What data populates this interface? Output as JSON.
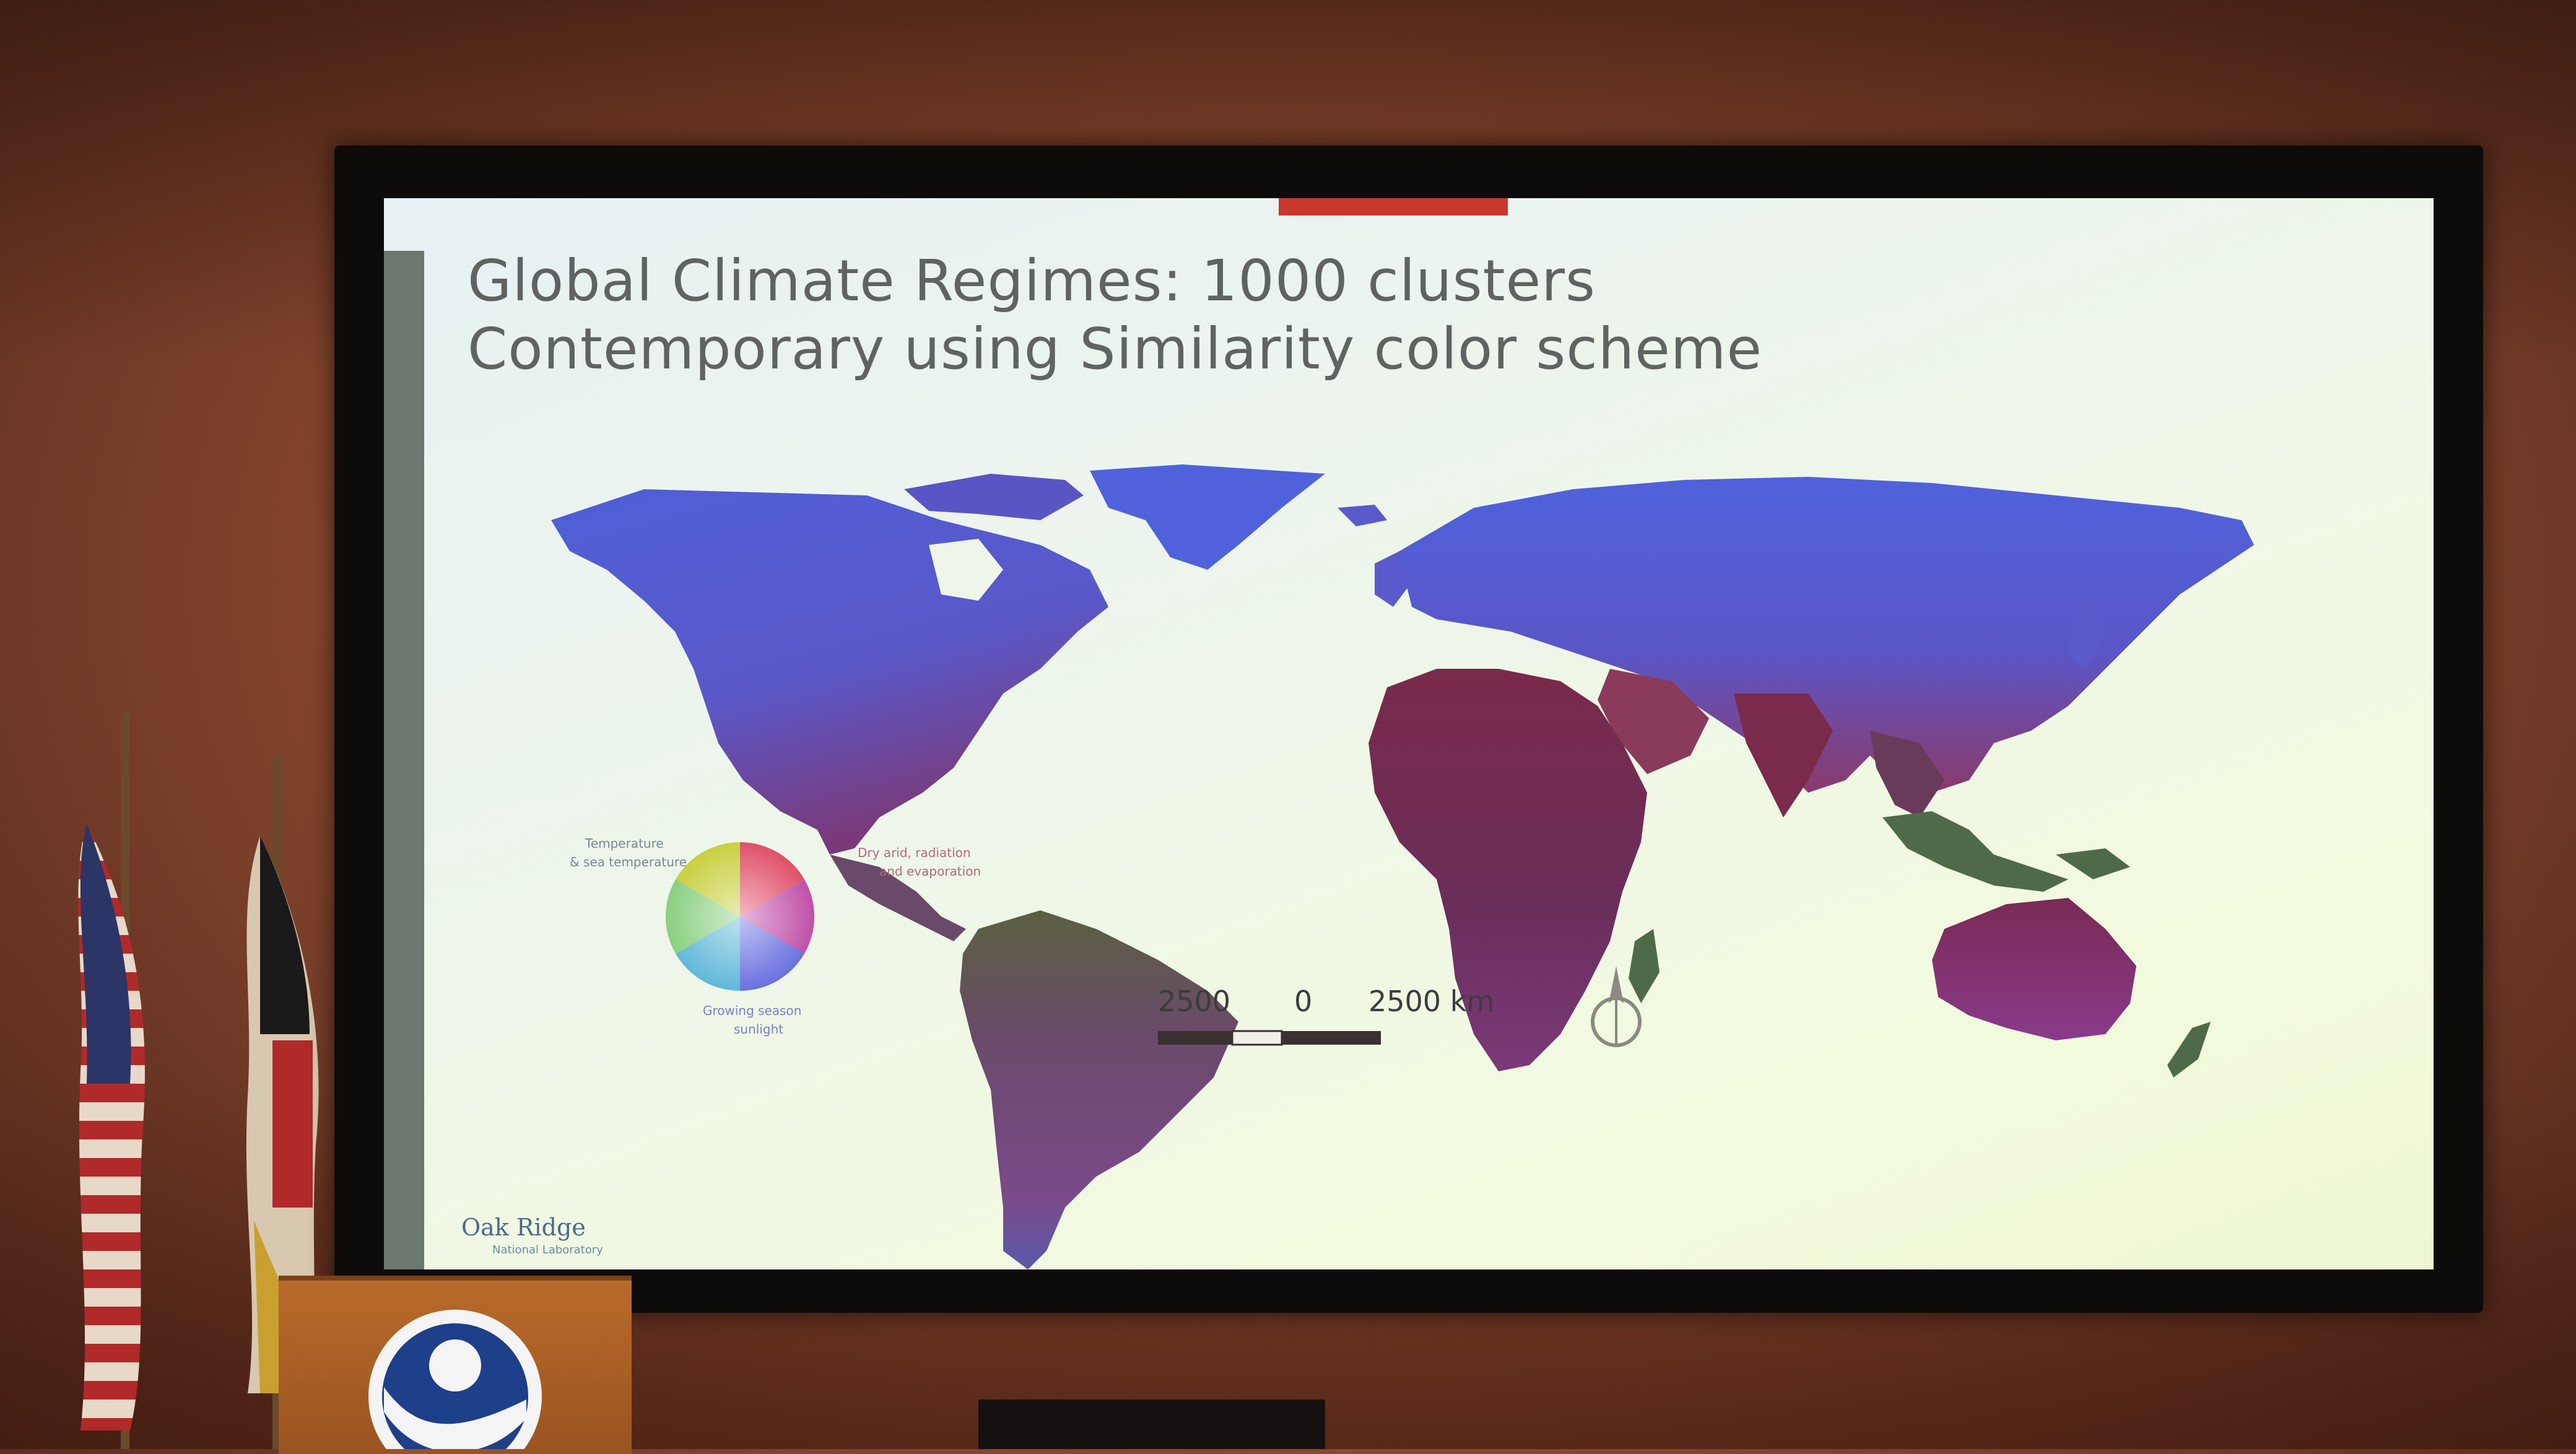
{
  "slide": {
    "title_line_1": "Global Climate Regimes: 1000 clusters",
    "title_line_2": "Contemporary using Similarity color scheme",
    "scale_bar": {
      "left_label": "2500",
      "middle_label": "0",
      "right_label": "2500 km"
    },
    "legend": {
      "label_top_left": "Temperature",
      "label_top_left_2": "& sea temperature",
      "label_top_right": "Dry arid, radiation",
      "label_top_right_2": "and evaporation",
      "label_bottom": "Growing season",
      "label_bottom_2": "sunlight"
    },
    "logo_text": "Oak Ridge",
    "logo_sub": "National Laboratory"
  },
  "colors": {
    "ocean_background": "#eef6ea",
    "northern_land": "#4f5fd6",
    "tropical_land": "#7a2e55",
    "subtropical_land": "#8a3a6a",
    "green_land": "#4f6a48",
    "title_text": "#5f6361",
    "accent_bar": "#c8382c"
  },
  "icons": {
    "compass": "north-arrow-icon",
    "legend": "color-wheel-icon",
    "podium_logo": "noaa-logo-icon"
  }
}
